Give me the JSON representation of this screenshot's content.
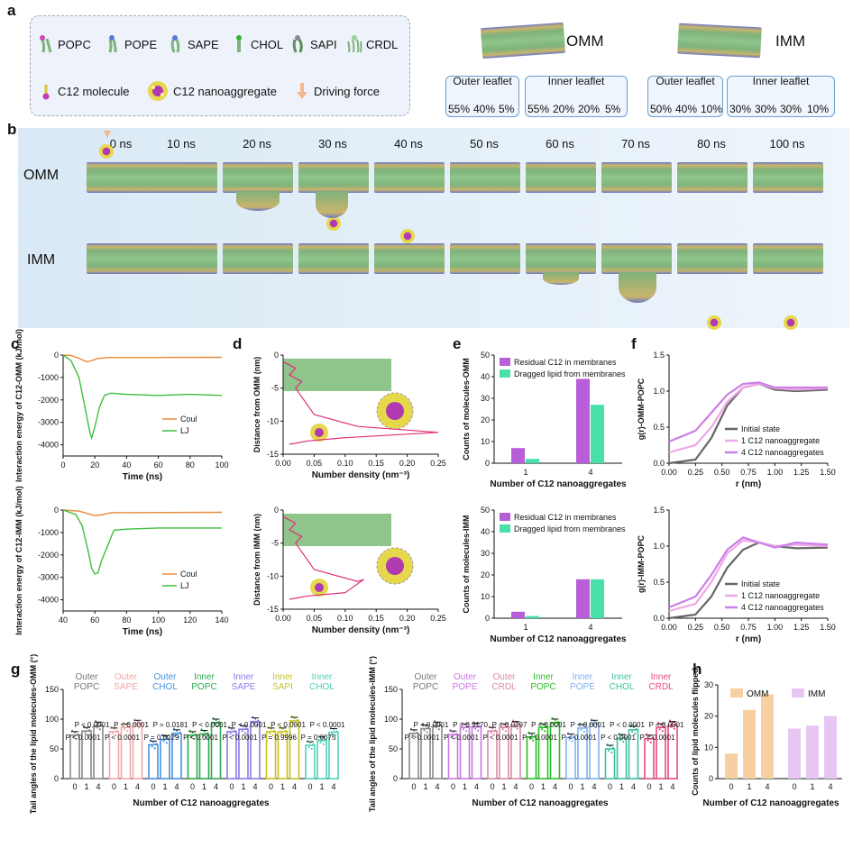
{
  "panels": {
    "a": "a",
    "b": "b",
    "c": "c",
    "d": "d",
    "e": "e",
    "f": "f",
    "g": "g",
    "h": "h"
  },
  "a": {
    "molecules": [
      "POPC",
      "POPE",
      "SAPE",
      "CHOL",
      "SAPI",
      "CRDL"
    ],
    "c12_molecule": "C12 molecule",
    "c12_nano": "C12 nanoaggregate",
    "driving_force": "Driving force",
    "omm": {
      "name": "OMM",
      "outer_title": "Outer leaflet",
      "inner_title": "Inner leaflet",
      "outer_pcts": [
        "55%",
        "40%",
        "5%"
      ],
      "inner_pcts": [
        "55%",
        "20%",
        "20%",
        "5%"
      ]
    },
    "imm": {
      "name": "IMM",
      "outer_title": "Outer leaflet",
      "inner_title": "Inner leaflet",
      "outer_pcts": [
        "50%",
        "40%",
        "10%"
      ],
      "inner_pcts": [
        "30%",
        "30%",
        "30%",
        "10%"
      ]
    }
  },
  "b": {
    "times": [
      "0 ns",
      "10 ns",
      "20 ns",
      "30 ns",
      "40 ns",
      "50 ns",
      "60 ns",
      "70 ns",
      "80 ns",
      "100 ns"
    ],
    "row1": "OMM",
    "row2": "IMM"
  },
  "c": {
    "top": {
      "ylabel": "Interaction energy of C12-OMM (kJ/mol)",
      "xlabel": "Time (ns)",
      "xticks": [
        "0",
        "20",
        "40",
        "60",
        "80",
        "100"
      ],
      "yticks": [
        "0",
        "-1000",
        "-2000",
        "-3000",
        "-4000"
      ],
      "legend": [
        "Coul",
        "LJ"
      ]
    },
    "bottom": {
      "ylabel": "Interaction energy of C12-IMM (kJ/mol)",
      "xlabel": "Time (ns)",
      "xticks": [
        "40",
        "60",
        "80",
        "100",
        "120",
        "140"
      ],
      "yticks": [
        "0",
        "-1000",
        "-2000",
        "-3000",
        "-4000"
      ],
      "legend": [
        "Coul",
        "LJ"
      ]
    }
  },
  "d": {
    "top": {
      "ylabel": "Distance from OMM (nm)",
      "xlabel": "Number density (nm⁻³)",
      "xticks": [
        "0.00",
        "0.05",
        "0.10",
        "0.15",
        "0.20",
        "0.25"
      ],
      "yticks": [
        "0",
        "-5",
        "-10",
        "-15"
      ]
    },
    "bottom": {
      "ylabel": "Distance from IMM (nm)",
      "xlabel": "Number density (nm⁻³)",
      "xticks": [
        "0.00",
        "0.05",
        "0.10",
        "0.15",
        "0.20",
        "0.25"
      ],
      "yticks": [
        "0",
        "-5",
        "-10",
        "-15"
      ]
    }
  },
  "e": {
    "top": {
      "ylabel": "Counts of molecules-OMM",
      "xlabel": "Number of C12 nanoaggregates",
      "yticks": [
        "0",
        "10",
        "20",
        "30",
        "40",
        "50"
      ],
      "legend": [
        "Residual C12 in membranes",
        "Dragged lipid from membranes"
      ]
    },
    "bottom": {
      "ylabel": "Counts of molecules-IMM",
      "xlabel": "Number of C12 nanoaggregates",
      "yticks": [
        "0",
        "10",
        "20",
        "30",
        "40",
        "50"
      ],
      "legend": [
        "Residual C12 in membranes",
        "Dragged lipid from membranes"
      ]
    }
  },
  "f": {
    "top": {
      "ylabel": "g(r)-OMM-POPC",
      "xlabel": "r (nm)",
      "xticks": [
        "0.00",
        "0.25",
        "0.50",
        "0.75",
        "1.00",
        "1.25",
        "1.50"
      ],
      "yticks": [
        "0.0",
        "0.5",
        "1.0",
        "1.5"
      ],
      "legend": [
        "Initial state",
        "1 C12 nanoaggregate",
        "4 C12 nanoaggregates"
      ]
    },
    "bottom": {
      "ylabel": "g(r)-IMM-POPC",
      "xlabel": "r (nm)",
      "xticks": [
        "0.00",
        "0.25",
        "0.50",
        "0.75",
        "1.00",
        "1.25",
        "1.50"
      ],
      "yticks": [
        "0.0",
        "0.5",
        "1.0",
        "1.5"
      ],
      "legend": [
        "Initial state",
        "1 C12 nanoaggregate",
        "4 C12 nanoaggregates"
      ]
    }
  },
  "g": {
    "left": {
      "ylabel": "Tail angles of the lipid molecules-OMM (°)",
      "xlabel": "Number of C12 nanoaggregates",
      "yticks": [
        "0",
        "50",
        "100",
        "150"
      ],
      "groups": [
        [
          "Outer",
          "POPC"
        ],
        [
          "Outer",
          "SAPE"
        ],
        [
          "Outer",
          "CHOL"
        ],
        [
          "Inner",
          "POPC"
        ],
        [
          "Inner",
          "SAPE"
        ],
        [
          "Inner",
          "SAPI"
        ],
        [
          "Inner",
          "CHOL"
        ]
      ],
      "pvals": [
        [
          "P < 0.0001",
          "P < 0.0001"
        ],
        [
          "P < 0.0001",
          "P < 0.0001"
        ],
        [
          "P = 0.0029",
          "P = 0.0181"
        ],
        [
          "P < 0.0001",
          "P < 0.0001"
        ],
        [
          "P < 0.0001",
          "P < 0.0001"
        ],
        [
          "P = 0.9996",
          "P < 0.0001"
        ],
        [
          "P = 0.0075",
          "P < 0.0001"
        ]
      ]
    },
    "right": {
      "ylabel": "Tail angles of the lipid molecules-IMM (°)",
      "xlabel": "Number of C12 nanoaggregates",
      "yticks": [
        "0",
        "50",
        "100",
        "150"
      ],
      "groups": [
        [
          "Outer",
          "POPC"
        ],
        [
          "Outer",
          "POPE"
        ],
        [
          "Outer",
          "CRDL"
        ],
        [
          "Inner",
          "POPC"
        ],
        [
          "Inner",
          "POPE"
        ],
        [
          "Inner",
          "CHOL"
        ],
        [
          "Inner",
          "CRDL"
        ]
      ],
      "pvals": [
        [
          "P < 0.0001",
          "P < 0.0001"
        ],
        [
          "P < 0.0001",
          "P = 0.9170"
        ],
        [
          "P < 0.0001",
          "P = 0.0297"
        ],
        [
          "P < 0.0001",
          "P < 0.0001"
        ],
        [
          "P < 0.0001",
          "P < 0.0001"
        ],
        [
          "P < 0.0001",
          "P < 0.0001"
        ],
        [
          "P < 0.0001",
          "P < 0.0001"
        ]
      ]
    },
    "xticks": [
      "0",
      "1",
      "4"
    ]
  },
  "h": {
    "ylabel": "Counts of lipid molecules flipped",
    "xlabel": "Number of C12 nanoaggregates",
    "yticks": [
      "0",
      "10",
      "20",
      "30"
    ],
    "legend": [
      "OMM",
      "IMM"
    ],
    "xticks": [
      "0",
      "1",
      "4",
      "0",
      "1",
      "4"
    ]
  },
  "colors": {
    "coul": "#e88a3c",
    "lj": "#3fbf3f",
    "residual": "#b85ed8",
    "dragged": "#47e0a8",
    "initial": "#666666",
    "one": "#f0a7e8",
    "four": "#cc7fe8",
    "omm_h": "#f8cfa0",
    "imm_h": "#e8c6f4",
    "density": "#e0307a"
  },
  "chart_data": [
    {
      "type": "line",
      "title": "c (top)",
      "xlabel": "Time (ns)",
      "ylabel": "Interaction energy of C12-OMM (kJ/mol)",
      "xlim": [
        0,
        100
      ],
      "ylim": [
        -4500,
        0
      ],
      "series": [
        {
          "name": "Coul",
          "x": [
            0,
            5,
            10,
            15,
            18,
            22,
            30,
            50,
            100
          ],
          "y": [
            0,
            -20,
            -150,
            -300,
            -250,
            -150,
            -110,
            -110,
            -100
          ]
        },
        {
          "name": "LJ",
          "x": [
            0,
            5,
            10,
            14,
            17,
            18,
            20,
            23,
            26,
            30,
            40,
            60,
            80,
            100
          ],
          "y": [
            0,
            -250,
            -1000,
            -2400,
            -3500,
            -3700,
            -3200,
            -2300,
            -1800,
            -1700,
            -1750,
            -1800,
            -1750,
            -1800
          ]
        }
      ]
    },
    {
      "type": "line",
      "title": "c (bottom)",
      "xlabel": "Time (ns)",
      "ylabel": "Interaction energy of C12-IMM (kJ/mol)",
      "xlim": [
        40,
        140
      ],
      "ylim": [
        -4500,
        0
      ],
      "series": [
        {
          "name": "Coul",
          "x": [
            40,
            50,
            55,
            60,
            65,
            70,
            140
          ],
          "y": [
            0,
            -50,
            -150,
            -250,
            -200,
            -120,
            -100
          ]
        },
        {
          "name": "LJ",
          "x": [
            40,
            48,
            52,
            56,
            58,
            60,
            62,
            64,
            68,
            72,
            80,
            100,
            140
          ],
          "y": [
            0,
            -200,
            -700,
            -1900,
            -2600,
            -2850,
            -2800,
            -2300,
            -1600,
            -900,
            -850,
            -800,
            -800
          ]
        }
      ]
    },
    {
      "type": "bar",
      "title": "e (top)",
      "categories": [
        "1",
        "4"
      ],
      "xlabel": "Number of C12 nanoaggregates",
      "ylabel": "Counts of molecules-OMM",
      "ylim": [
        0,
        50
      ],
      "series": [
        {
          "name": "Residual C12 in membranes",
          "values": [
            7,
            39
          ]
        },
        {
          "name": "Dragged lipid from membranes",
          "values": [
            2,
            27
          ]
        }
      ]
    },
    {
      "type": "bar",
      "title": "e (bottom)",
      "categories": [
        "1",
        "4"
      ],
      "xlabel": "Number of C12 nanoaggregates",
      "ylabel": "Counts of molecules-IMM",
      "ylim": [
        0,
        50
      ],
      "series": [
        {
          "name": "Residual C12 in membranes",
          "values": [
            3,
            18
          ]
        },
        {
          "name": "Dragged lipid from membranes",
          "values": [
            1,
            18
          ]
        }
      ]
    },
    {
      "type": "line",
      "title": "f (top)",
      "xlabel": "r (nm)",
      "ylabel": "g(r)-OMM-POPC",
      "xlim": [
        0,
        1.5
      ],
      "ylim": [
        0,
        1.5
      ],
      "series": [
        {
          "name": "Initial state",
          "x": [
            0,
            0.25,
            0.4,
            0.55,
            0.7,
            0.85,
            1.0,
            1.2,
            1.5
          ],
          "y": [
            0,
            0.05,
            0.35,
            0.8,
            1.05,
            1.1,
            1.02,
            1.0,
            1.02
          ]
        },
        {
          "name": "1 C12 nanoaggregate",
          "x": [
            0,
            0.25,
            0.4,
            0.55,
            0.7,
            0.85,
            1.0,
            1.2,
            1.5
          ],
          "y": [
            0.15,
            0.25,
            0.5,
            0.85,
            1.05,
            1.1,
            1.04,
            1.02,
            1.04
          ]
        },
        {
          "name": "4 C12 nanoaggregates",
          "x": [
            0,
            0.25,
            0.4,
            0.55,
            0.7,
            0.85,
            1.0,
            1.2,
            1.5
          ],
          "y": [
            0.3,
            0.45,
            0.7,
            0.95,
            1.1,
            1.12,
            1.05,
            1.05,
            1.05
          ]
        }
      ]
    },
    {
      "type": "line",
      "title": "f (bottom)",
      "xlabel": "r (nm)",
      "ylabel": "g(r)-IMM-POPC",
      "xlim": [
        0,
        1.5
      ],
      "ylim": [
        0,
        1.5
      ],
      "series": [
        {
          "name": "Initial state",
          "x": [
            0,
            0.25,
            0.4,
            0.55,
            0.7,
            0.85,
            1.0,
            1.2,
            1.5
          ],
          "y": [
            0,
            0.05,
            0.3,
            0.7,
            0.95,
            1.05,
            1.0,
            0.97,
            0.98
          ]
        },
        {
          "name": "1 C12 nanoaggregate",
          "x": [
            0,
            0.25,
            0.4,
            0.55,
            0.7,
            0.85,
            1.0,
            1.2,
            1.5
          ],
          "y": [
            0.1,
            0.2,
            0.5,
            0.9,
            1.08,
            1.05,
            1.0,
            1.02,
            1.0
          ]
        },
        {
          "name": "4 C12 nanoaggregates",
          "x": [
            0,
            0.25,
            0.4,
            0.55,
            0.7,
            0.85,
            1.0,
            1.2,
            1.5
          ],
          "y": [
            0.15,
            0.3,
            0.6,
            0.95,
            1.12,
            1.05,
            0.98,
            1.05,
            1.02
          ]
        }
      ]
    },
    {
      "type": "bar",
      "title": "g (left)",
      "categories": [
        "0",
        "1",
        "4"
      ],
      "xlabel": "Number of C12 nanoaggregates",
      "ylabel": "Tail angles of the lipid molecules-OMM (°)",
      "ylim": [
        0,
        150
      ],
      "series": [
        {
          "name": "Outer POPC",
          "values": [
            73,
            80,
            89
          ]
        },
        {
          "name": "Outer SAPE",
          "values": [
            79,
            86,
            92
          ]
        },
        {
          "name": "Outer CHOL",
          "values": [
            57,
            66,
            76
          ]
        },
        {
          "name": "Inner POPC",
          "values": [
            73,
            75,
            94
          ]
        },
        {
          "name": "Inner SAPE",
          "values": [
            79,
            83,
            96
          ]
        },
        {
          "name": "Inner SAPI",
          "values": [
            79,
            79,
            97
          ]
        },
        {
          "name": "Inner CHOL",
          "values": [
            56,
            64,
            78
          ]
        }
      ]
    },
    {
      "type": "bar",
      "title": "g (right)",
      "categories": [
        "0",
        "1",
        "4"
      ],
      "xlabel": "Number of C12 nanoaggregates",
      "ylabel": "Tail angles of the lipid molecules-IMM (°)",
      "ylim": [
        0,
        150
      ],
      "series": [
        {
          "name": "Outer POPC",
          "values": [
            76,
            84,
            89
          ]
        },
        {
          "name": "Outer POPE",
          "values": [
            74,
            86,
            87
          ]
        },
        {
          "name": "Outer CRDL",
          "values": [
            80,
            86,
            90
          ]
        },
        {
          "name": "Inner POPC",
          "values": [
            70,
            86,
            94
          ]
        },
        {
          "name": "Inner POPE",
          "values": [
            69,
            85,
            92
          ]
        },
        {
          "name": "Inner CHOL",
          "values": [
            50,
            68,
            82
          ]
        },
        {
          "name": "Inner CRDL",
          "values": [
            67,
            86,
            90
          ]
        }
      ]
    },
    {
      "type": "bar",
      "title": "h",
      "categories": [
        "0",
        "1",
        "4"
      ],
      "xlabel": "Number of C12 nanoaggregates",
      "ylabel": "Counts of lipid molecules flipped",
      "ylim": [
        0,
        30
      ],
      "series": [
        {
          "name": "OMM",
          "values": [
            8,
            22,
            27
          ]
        },
        {
          "name": "IMM",
          "values": [
            16,
            17,
            20
          ]
        }
      ]
    }
  ]
}
